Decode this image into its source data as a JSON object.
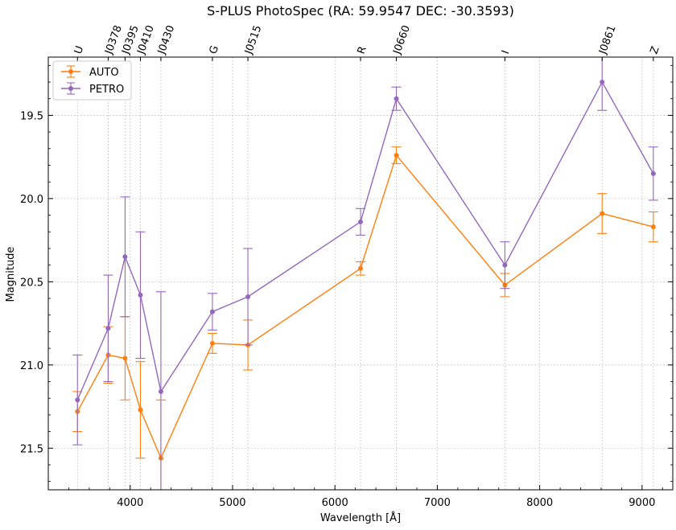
{
  "chart_data": {
    "type": "scatter",
    "title": "S-PLUS PhotoSpec (RA: 59.9547 DEC: -30.3593)",
    "xlabel": "Wavelength [Å]",
    "ylabel": "Magnitude",
    "xlim": [
      3200,
      9300
    ],
    "ylim": [
      21.75,
      19.15
    ],
    "y_inverted": true,
    "grid": true,
    "legend_position": "top-left",
    "x_ticks": [
      4000,
      5000,
      6000,
      7000,
      8000,
      9000
    ],
    "y_ticks": [
      19.5,
      20.0,
      20.5,
      21.0,
      21.5
    ],
    "bands": [
      {
        "name": "U",
        "wavelength": 3485
      },
      {
        "name": "J0378",
        "wavelength": 3785
      },
      {
        "name": "J0395",
        "wavelength": 3950
      },
      {
        "name": "J0410",
        "wavelength": 4100
      },
      {
        "name": "J0430",
        "wavelength": 4300
      },
      {
        "name": "G",
        "wavelength": 4803
      },
      {
        "name": "J0515",
        "wavelength": 5150
      },
      {
        "name": "R",
        "wavelength": 6250
      },
      {
        "name": "J0660",
        "wavelength": 6600
      },
      {
        "name": "I",
        "wavelength": 7660
      },
      {
        "name": "J0861",
        "wavelength": 8610
      },
      {
        "name": "Z",
        "wavelength": 9110
      }
    ],
    "series": [
      {
        "name": "AUTO",
        "color": "#ff7f0e",
        "values": [
          21.28,
          20.94,
          20.96,
          21.27,
          21.56,
          20.87,
          20.88,
          20.42,
          19.74,
          20.52,
          20.09,
          20.17
        ],
        "errors": [
          0.12,
          0.17,
          0.25,
          0.29,
          0.35,
          0.06,
          0.15,
          0.04,
          0.05,
          0.07,
          0.12,
          0.09
        ]
      },
      {
        "name": "PETRO",
        "color": "#9467bd",
        "values": [
          21.21,
          20.78,
          20.35,
          20.58,
          21.16,
          20.68,
          20.59,
          20.14,
          19.4,
          20.4,
          19.3,
          19.85
        ],
        "errors": [
          0.27,
          0.32,
          0.36,
          0.38,
          0.6,
          0.11,
          0.29,
          0.08,
          0.07,
          0.14,
          0.17,
          0.16
        ]
      }
    ]
  }
}
